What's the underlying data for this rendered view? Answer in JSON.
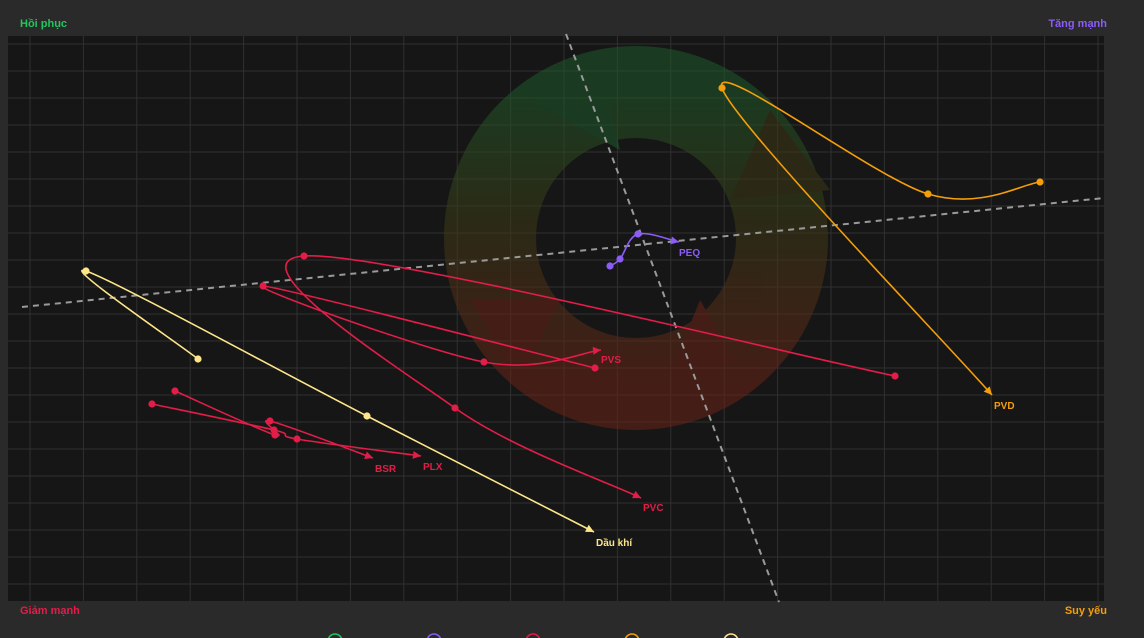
{
  "chart_data": {
    "type": "scatter",
    "subtype": "relative-rotation-trails",
    "title": "",
    "xlabel": "",
    "ylabel": "",
    "grid": true,
    "background_color": "#161616",
    "frame_color": "#2a2a2a",
    "grid_color": "#303030",
    "quadrants": {
      "top_left": {
        "label": "Hồi phục",
        "color": "#22c55e"
      },
      "top_right": {
        "label": "Tăng mạnh",
        "color": "#8b5cf6"
      },
      "bottom_left": {
        "label": "Giảm mạnh",
        "color": "#e11d48"
      },
      "bottom_right": {
        "label": "Suy yếu",
        "color": "#f59e0b"
      }
    },
    "reference_lines": "dashed lines crossing near the center",
    "legend": {
      "placement": "bottom-center",
      "colors": [
        "#22c55e",
        "#8b5cf6",
        "#e11d48",
        "#f59e0b",
        "#fde68a"
      ]
    },
    "series": [
      {
        "name": "PVD",
        "color": "#f59e0b",
        "points": [
          [
            1040,
            182
          ],
          [
            928,
            194
          ],
          [
            722,
            88
          ],
          [
            992,
            395
          ]
        ]
      },
      {
        "name": "PEQ",
        "color": "#8b5cf6",
        "points": [
          [
            610,
            266
          ],
          [
            620,
            259
          ],
          [
            638,
            234
          ],
          [
            679,
            242
          ]
        ]
      },
      {
        "name": "PVS",
        "color": "#e11d48",
        "points": [
          [
            595,
            368
          ],
          [
            263,
            286
          ],
          [
            484,
            362
          ],
          [
            601,
            350
          ]
        ]
      },
      {
        "name": "PVC",
        "color": "#e11d48",
        "points": [
          [
            895,
            376
          ],
          [
            304,
            256
          ],
          [
            455,
            408
          ],
          [
            641,
            498
          ]
        ]
      },
      {
        "name": "BSR",
        "color": "#e11d48",
        "points": [
          [
            175,
            391
          ],
          [
            275,
            435
          ],
          [
            270,
            421
          ],
          [
            373,
            458
          ]
        ]
      },
      {
        "name": "PLX",
        "color": "#e11d48",
        "points": [
          [
            152,
            404
          ],
          [
            274,
            430
          ],
          [
            297,
            439
          ],
          [
            421,
            456
          ]
        ]
      },
      {
        "name": "Dầu khí",
        "color": "#fde68a",
        "points": [
          [
            198,
            359
          ],
          [
            86,
            271
          ],
          [
            367,
            416
          ],
          [
            594,
            532
          ]
        ]
      }
    ]
  }
}
